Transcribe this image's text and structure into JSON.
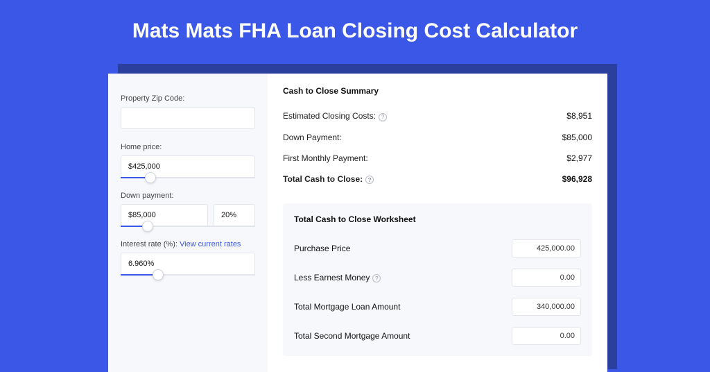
{
  "colors": {
    "page_bg": "#3b57e8",
    "shadow": "#2a3f9e",
    "card_bg": "#ffffff",
    "panel_bg": "#f7f8fb",
    "border": "#e2e5eb",
    "text": "#111111",
    "muted": "#444444",
    "link": "#3b57e8"
  },
  "title": "Mats Mats FHA Loan Closing Cost Calculator",
  "sidebar": {
    "zip_label": "Property Zip Code:",
    "zip_value": "",
    "home_price_label": "Home price:",
    "home_price_value": "$425,000",
    "home_price_slider_pct": 22,
    "down_payment_label": "Down payment:",
    "down_payment_value": "$85,000",
    "down_payment_pct": "20%",
    "down_payment_slider_pct": 20,
    "interest_label": "Interest rate (%):",
    "interest_link": "View current rates",
    "interest_value": "6.960%",
    "interest_slider_pct": 28
  },
  "summary": {
    "title": "Cash to Close Summary",
    "rows": [
      {
        "label": "Estimated Closing Costs:",
        "value": "$8,951",
        "help": true,
        "bold": false
      },
      {
        "label": "Down Payment:",
        "value": "$85,000",
        "help": false,
        "bold": false
      },
      {
        "label": "First Monthly Payment:",
        "value": "$2,977",
        "help": false,
        "bold": false
      },
      {
        "label": "Total Cash to Close:",
        "value": "$96,928",
        "help": true,
        "bold": true
      }
    ]
  },
  "worksheet": {
    "title": "Total Cash to Close Worksheet",
    "rows": [
      {
        "label": "Purchase Price",
        "value": "425,000.00",
        "help": false
      },
      {
        "label": "Less Earnest Money",
        "value": "0.00",
        "help": true
      },
      {
        "label": "Total Mortgage Loan Amount",
        "value": "340,000.00",
        "help": false
      },
      {
        "label": "Total Second Mortgage Amount",
        "value": "0.00",
        "help": false
      }
    ]
  }
}
